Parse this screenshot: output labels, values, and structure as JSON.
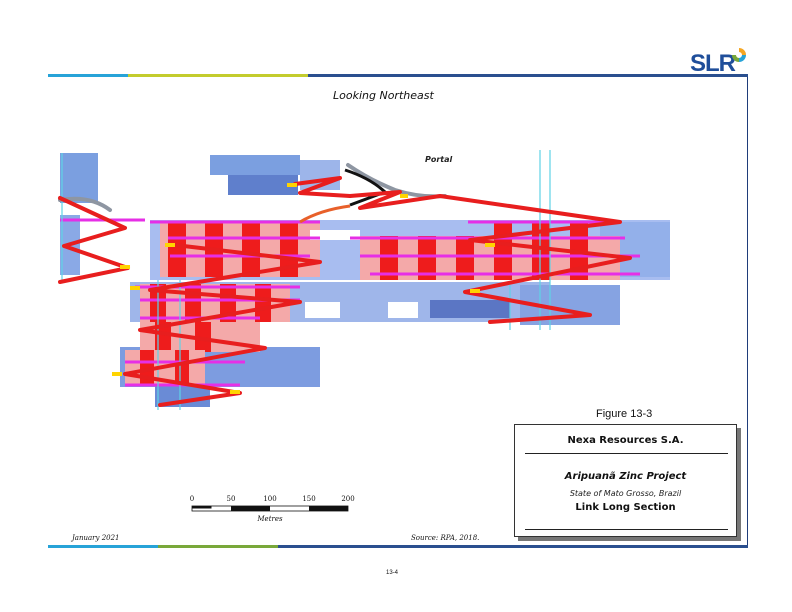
{
  "header": {
    "logo_text": "SLR",
    "stripe_colors": [
      "#27a3d8",
      "#c3cc2d",
      "#2a4f8f",
      "#79a83a"
    ]
  },
  "figure": {
    "view_label": "Looking Northeast",
    "portal_label": "Portal",
    "figure_number": "Figure 13-3"
  },
  "title_block": {
    "company": "Nexa Resources S.A.",
    "project": "Aripuanã Zinc Project",
    "location": "State of Mato Grosso, Brazil",
    "figure_name": "Link Long Section"
  },
  "scale_bar": {
    "ticks": [
      "0",
      "50",
      "100",
      "150",
      "200"
    ],
    "units": "Metres"
  },
  "footer": {
    "date": "January 2021",
    "source": "Source: RPA, 2018.",
    "page_number": "13-4"
  },
  "colors": {
    "stope_blue": "#7b9fe0",
    "stope_pink": "#f2a6a6",
    "stope_red": "#ee1c1c",
    "ramp_red": "#e81e1e",
    "drift_magenta": "#e62fe6",
    "frame_border": "#1f3d7a"
  }
}
